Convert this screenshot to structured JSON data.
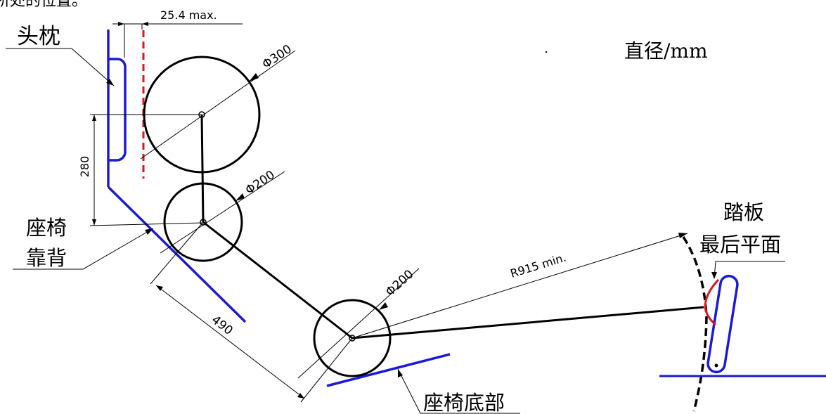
{
  "header": {
    "cropped_caption": "所处的位置。"
  },
  "labels": {
    "headrest": "头枕",
    "seat_back_line1": "座椅",
    "seat_back_line2": "靠背",
    "seat_bottom": "座椅底部",
    "pedal_line1": "踏板",
    "pedal_line2": "最后平面",
    "diameter_unit": "直径/mm"
  },
  "dimensions": {
    "headrest_gap": "25.4 max.",
    "head_diameter": "Φ300",
    "shoulder_diameter": "Φ200",
    "hip_diameter": "Φ200",
    "head_to_shoulder": "280",
    "shoulder_to_hip": "490",
    "hip_to_pedal_radius": "R915 min."
  },
  "colors": {
    "outline": "#000000",
    "seat": "#1a1ad6",
    "limit_line": "#e0141e",
    "contact_arc": "#e0141e"
  }
}
